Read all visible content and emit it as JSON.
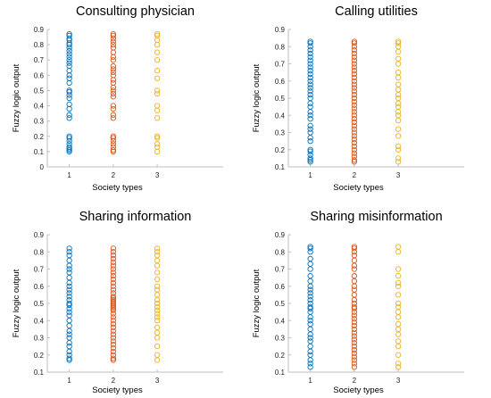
{
  "chart_data": [
    {
      "type": "scatter",
      "title": "Consulting physician",
      "xlabel": "Society types",
      "ylabel": "Fuzzy logic output",
      "xlim": [
        0.5,
        4.5
      ],
      "ylim": [
        0,
        0.9
      ],
      "xticks": [
        "1",
        "2",
        "3"
      ],
      "yticks": [
        "0",
        "0.1",
        "0.2",
        "0.3",
        "0.4",
        "0.5",
        "0.6",
        "0.7",
        "0.8",
        "0.9"
      ],
      "grid": false,
      "series": [
        {
          "x": 1,
          "color": "#0072BD",
          "values": [
            0.1,
            0.11,
            0.12,
            0.13,
            0.15,
            0.17,
            0.19,
            0.2,
            0.32,
            0.34,
            0.38,
            0.41,
            0.45,
            0.47,
            0.49,
            0.5,
            0.55,
            0.58,
            0.6,
            0.63,
            0.66,
            0.68,
            0.7,
            0.72,
            0.74,
            0.76,
            0.78,
            0.8,
            0.81,
            0.83,
            0.84,
            0.86,
            0.87
          ]
        },
        {
          "x": 2,
          "color": "#D95319",
          "values": [
            0.1,
            0.11,
            0.13,
            0.15,
            0.17,
            0.19,
            0.2,
            0.32,
            0.34,
            0.38,
            0.4,
            0.46,
            0.48,
            0.5,
            0.52,
            0.55,
            0.57,
            0.6,
            0.62,
            0.64,
            0.66,
            0.7,
            0.72,
            0.75,
            0.78,
            0.8,
            0.82,
            0.84,
            0.86,
            0.87
          ]
        },
        {
          "x": 3,
          "color": "#EDB120",
          "values": [
            0.1,
            0.13,
            0.15,
            0.19,
            0.2,
            0.32,
            0.37,
            0.4,
            0.48,
            0.5,
            0.58,
            0.63,
            0.7,
            0.75,
            0.8,
            0.83,
            0.86,
            0.87
          ]
        }
      ]
    },
    {
      "type": "scatter",
      "title": "Calling utilities",
      "xlabel": "Society types",
      "ylabel": "Fuzzy logic output",
      "xlim": [
        0.5,
        4.5
      ],
      "ylim": [
        0.1,
        0.9
      ],
      "xticks": [
        "1",
        "2",
        "3"
      ],
      "yticks": [
        "0.1",
        "0.2",
        "0.3",
        "0.4",
        "0.5",
        "0.6",
        "0.7",
        "0.8",
        "0.9"
      ],
      "grid": false,
      "series": [
        {
          "x": 1,
          "color": "#0072BD",
          "values": [
            0.13,
            0.14,
            0.15,
            0.17,
            0.19,
            0.2,
            0.25,
            0.27,
            0.3,
            0.32,
            0.34,
            0.38,
            0.4,
            0.42,
            0.45,
            0.47,
            0.5,
            0.52,
            0.54,
            0.56,
            0.58,
            0.6,
            0.62,
            0.64,
            0.66,
            0.68,
            0.7,
            0.72,
            0.74,
            0.76,
            0.78,
            0.8,
            0.82,
            0.83
          ]
        },
        {
          "x": 2,
          "color": "#D95319",
          "values": [
            0.13,
            0.14,
            0.16,
            0.18,
            0.2,
            0.22,
            0.24,
            0.26,
            0.28,
            0.3,
            0.32,
            0.34,
            0.36,
            0.38,
            0.4,
            0.42,
            0.44,
            0.46,
            0.48,
            0.5,
            0.52,
            0.54,
            0.56,
            0.58,
            0.6,
            0.62,
            0.64,
            0.66,
            0.68,
            0.7,
            0.72,
            0.74,
            0.76,
            0.78,
            0.8,
            0.82,
            0.83
          ]
        },
        {
          "x": 3,
          "color": "#EDB120",
          "values": [
            0.13,
            0.15,
            0.2,
            0.22,
            0.28,
            0.32,
            0.37,
            0.4,
            0.42,
            0.45,
            0.47,
            0.5,
            0.52,
            0.55,
            0.58,
            0.62,
            0.65,
            0.7,
            0.73,
            0.77,
            0.8,
            0.82,
            0.83
          ]
        }
      ]
    },
    {
      "type": "scatter",
      "title": "Sharing information",
      "xlabel": "Society types",
      "ylabel": "Fuzzy logic output",
      "xlim": [
        0.5,
        4.5
      ],
      "ylim": [
        0.1,
        0.9
      ],
      "xticks": [
        "1",
        "2",
        "3"
      ],
      "yticks": [
        "0.1",
        "0.2",
        "0.3",
        "0.4",
        "0.5",
        "0.6",
        "0.7",
        "0.8",
        "0.9"
      ],
      "grid": false,
      "series": [
        {
          "x": 1,
          "color": "#0072BD",
          "values": [
            0.17,
            0.18,
            0.2,
            0.22,
            0.25,
            0.27,
            0.3,
            0.32,
            0.34,
            0.37,
            0.4,
            0.43,
            0.45,
            0.47,
            0.49,
            0.5,
            0.52,
            0.54,
            0.56,
            0.58,
            0.6,
            0.62,
            0.65,
            0.68,
            0.7,
            0.72,
            0.75,
            0.78,
            0.8,
            0.82
          ]
        },
        {
          "x": 2,
          "color": "#D95319",
          "values": [
            0.17,
            0.18,
            0.2,
            0.22,
            0.24,
            0.26,
            0.28,
            0.3,
            0.32,
            0.34,
            0.36,
            0.38,
            0.4,
            0.42,
            0.44,
            0.46,
            0.47,
            0.48,
            0.49,
            0.5,
            0.51,
            0.52,
            0.53,
            0.54,
            0.56,
            0.58,
            0.6,
            0.62,
            0.64,
            0.66,
            0.68,
            0.7,
            0.72,
            0.74,
            0.76,
            0.78,
            0.8,
            0.82
          ]
        },
        {
          "x": 3,
          "color": "#EDB120",
          "values": [
            0.17,
            0.2,
            0.25,
            0.3,
            0.33,
            0.36,
            0.4,
            0.42,
            0.44,
            0.46,
            0.48,
            0.5,
            0.52,
            0.55,
            0.58,
            0.6,
            0.64,
            0.68,
            0.72,
            0.75,
            0.78,
            0.8,
            0.82
          ]
        }
      ]
    },
    {
      "type": "scatter",
      "title": "Sharing misinformation",
      "xlabel": "Society types",
      "ylabel": "Fuzzy logic output",
      "xlim": [
        0.5,
        4.5
      ],
      "ylim": [
        0.1,
        0.9
      ],
      "xticks": [
        "1",
        "2",
        "3"
      ],
      "yticks": [
        "0.1",
        "0.2",
        "0.3",
        "0.4",
        "0.5",
        "0.6",
        "0.7",
        "0.8",
        "0.9"
      ],
      "grid": false,
      "series": [
        {
          "x": 1,
          "color": "#0072BD",
          "values": [
            0.13,
            0.15,
            0.17,
            0.2,
            0.22,
            0.25,
            0.28,
            0.3,
            0.32,
            0.35,
            0.38,
            0.4,
            0.42,
            0.45,
            0.47,
            0.48,
            0.5,
            0.52,
            0.54,
            0.56,
            0.58,
            0.6,
            0.63,
            0.66,
            0.7,
            0.73,
            0.76,
            0.8,
            0.82,
            0.83
          ]
        },
        {
          "x": 2,
          "color": "#D95319",
          "values": [
            0.13,
            0.15,
            0.17,
            0.19,
            0.21,
            0.23,
            0.25,
            0.27,
            0.29,
            0.31,
            0.33,
            0.35,
            0.37,
            0.39,
            0.41,
            0.43,
            0.45,
            0.47,
            0.48,
            0.5,
            0.52,
            0.55,
            0.58,
            0.6,
            0.63,
            0.66,
            0.7,
            0.72,
            0.75,
            0.78,
            0.8,
            0.82,
            0.83
          ]
        },
        {
          "x": 3,
          "color": "#EDB120",
          "values": [
            0.13,
            0.15,
            0.2,
            0.25,
            0.28,
            0.32,
            0.35,
            0.38,
            0.42,
            0.45,
            0.48,
            0.5,
            0.55,
            0.6,
            0.62,
            0.66,
            0.7,
            0.8,
            0.83
          ]
        }
      ]
    }
  ]
}
